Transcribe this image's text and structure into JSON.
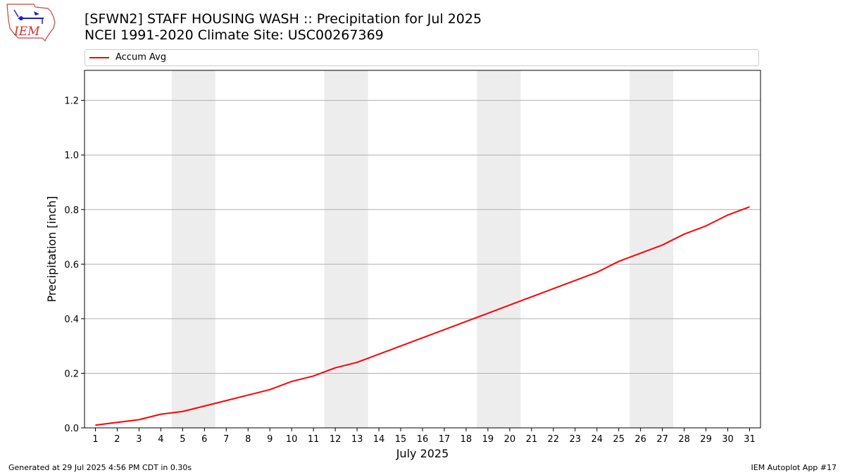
{
  "header": {
    "title_line1": "[SFWN2] STAFF HOUSING WASH :: Precipitation for Jul 2025",
    "title_line2": "NCEI 1991-2020 Climate Site: USC00267369"
  },
  "logo": {
    "text": "IEM"
  },
  "footer": {
    "generated": "Generated at 29 Jul 2025 4:56 PM CDT in 0.30s",
    "app": "IEM Autoplot App #17"
  },
  "chart_data": {
    "type": "line",
    "xlabel": "July 2025",
    "ylabel": "Precipitation [inch]",
    "xlim": [
      0.5,
      31.5
    ],
    "ylim": [
      0,
      1.31
    ],
    "y_ticks": [
      0.0,
      0.2,
      0.4,
      0.6,
      0.8,
      1.0,
      1.2
    ],
    "y_grid": true,
    "legend_position": "top",
    "weekend_bands": [
      [
        5,
        6
      ],
      [
        12,
        13
      ],
      [
        19,
        20
      ],
      [
        26,
        27
      ]
    ],
    "band_color": "#ededed",
    "x": [
      1,
      2,
      3,
      4,
      5,
      6,
      7,
      8,
      9,
      10,
      11,
      12,
      13,
      14,
      15,
      16,
      17,
      18,
      19,
      20,
      21,
      22,
      23,
      24,
      25,
      26,
      27,
      28,
      29,
      30,
      31
    ],
    "series": [
      {
        "name": "Accum Avg",
        "color": "#ff0000",
        "values": [
          0.01,
          0.02,
          0.03,
          0.05,
          0.06,
          0.08,
          0.1,
          0.12,
          0.14,
          0.17,
          0.19,
          0.22,
          0.24,
          0.27,
          0.3,
          0.33,
          0.36,
          0.39,
          0.42,
          0.45,
          0.48,
          0.51,
          0.54,
          0.57,
          0.61,
          0.64,
          0.67,
          0.71,
          0.74,
          0.78,
          0.81
        ]
      }
    ]
  }
}
